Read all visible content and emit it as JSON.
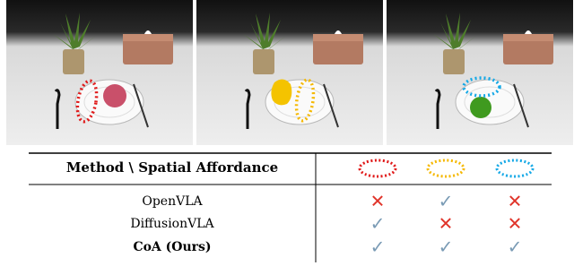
{
  "table": {
    "header": "Method \\ Spatial Affordance",
    "rows": [
      [
        "OpenVLA",
        "✕",
        "✓",
        "✕"
      ],
      [
        "DiffusionVLA",
        "✓",
        "✕",
        "✕"
      ],
      [
        "CoA (Ours)",
        "✓",
        "✓",
        "✓"
      ]
    ]
  }
}
